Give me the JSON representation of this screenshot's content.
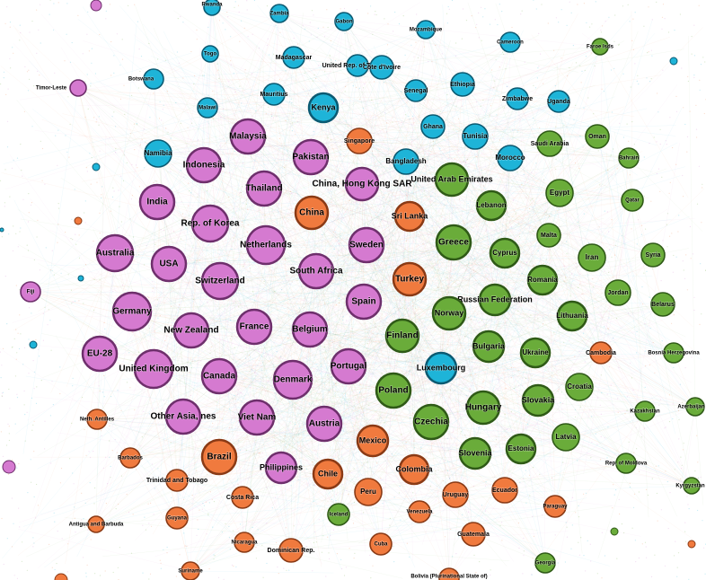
{
  "palette": {
    "purple": {
      "fill": "#d57ad0",
      "stroke": "#6e2f6c"
    },
    "green": {
      "fill": "#6aac3a",
      "stroke": "#2f5a17"
    },
    "orange": {
      "fill": "#f07a3e",
      "stroke": "#8a3a15"
    },
    "cyan": {
      "fill": "#1eb4d8",
      "stroke": "#0b5a72"
    },
    "edge_colors": [
      "#d57ad0",
      "#6aac3a",
      "#f07a3e",
      "#1eb4d8"
    ]
  },
  "nodes": [
    {
      "id": "rwanda",
      "label": "Rwanda",
      "group": "cyan"
    },
    {
      "id": "zambia",
      "label": "Zambia",
      "group": "cyan"
    },
    {
      "id": "gabon",
      "label": "Gabon",
      "group": "cyan"
    },
    {
      "id": "mozambique",
      "label": "Mozambique",
      "group": "cyan"
    },
    {
      "id": "cameroon",
      "label": "Cameroon",
      "group": "cyan"
    },
    {
      "id": "togo",
      "label": "Togo",
      "group": "cyan"
    },
    {
      "id": "madagascar",
      "label": "Madagascar",
      "group": "cyan"
    },
    {
      "id": "tanzania",
      "label": "United Rep. of Tanzania",
      "group": "cyan"
    },
    {
      "id": "cote",
      "label": "Côte d'Ivoire",
      "group": "cyan"
    },
    {
      "id": "botswana",
      "label": "Botswana",
      "group": "cyan"
    },
    {
      "id": "ethiopia",
      "label": "Ethiopia",
      "group": "cyan"
    },
    {
      "id": "mauritius",
      "label": "Mauritius",
      "group": "cyan"
    },
    {
      "id": "senegal",
      "label": "Senegal",
      "group": "cyan"
    },
    {
      "id": "zimbabwe",
      "label": "Zimbabwe",
      "group": "cyan"
    },
    {
      "id": "uganda",
      "label": "Uganda",
      "group": "cyan"
    },
    {
      "id": "malawi",
      "label": "Malawi",
      "group": "cyan"
    },
    {
      "id": "kenya",
      "label": "Kenya",
      "group": "cyan"
    },
    {
      "id": "ghana",
      "label": "Ghana",
      "group": "cyan"
    },
    {
      "id": "tunisia",
      "label": "Tunisia",
      "group": "cyan"
    },
    {
      "id": "namibia",
      "label": "Namibia",
      "group": "cyan"
    },
    {
      "id": "bangladesh",
      "label": "Bangladesh",
      "group": "cyan"
    },
    {
      "id": "morocco",
      "label": "Morocco",
      "group": "cyan"
    },
    {
      "id": "luxembourg",
      "label": "Luxembourg",
      "group": "cyan"
    },
    {
      "id": "timor",
      "label": "Timor-Leste",
      "group": "purple"
    },
    {
      "id": "malaysia",
      "label": "Malaysia",
      "group": "purple"
    },
    {
      "id": "pakistan",
      "label": "Pakistan",
      "group": "purple"
    },
    {
      "id": "indonesia",
      "label": "Indonesia",
      "group": "purple"
    },
    {
      "id": "thailand",
      "label": "Thailand",
      "group": "purple"
    },
    {
      "id": "hongkong",
      "label": "China, Hong Kong SAR",
      "group": "purple"
    },
    {
      "id": "india",
      "label": "India",
      "group": "purple"
    },
    {
      "id": "korea",
      "label": "Rep. of Korea",
      "group": "purple"
    },
    {
      "id": "netherlands",
      "label": "Netherlands",
      "group": "purple"
    },
    {
      "id": "sweden",
      "label": "Sweden",
      "group": "purple"
    },
    {
      "id": "australia",
      "label": "Australia",
      "group": "purple"
    },
    {
      "id": "usa",
      "label": "USA",
      "group": "purple"
    },
    {
      "id": "switzerland",
      "label": "Switzerland",
      "group": "purple"
    },
    {
      "id": "southafrica",
      "label": "South Africa",
      "group": "purple"
    },
    {
      "id": "fiji",
      "label": "Fiji",
      "group": "purple"
    },
    {
      "id": "spain",
      "label": "Spain",
      "group": "purple"
    },
    {
      "id": "germany",
      "label": "Germany",
      "group": "purple"
    },
    {
      "id": "newzealand",
      "label": "New Zealand",
      "group": "purple"
    },
    {
      "id": "france",
      "label": "France",
      "group": "purple"
    },
    {
      "id": "belgium",
      "label": "Belgium",
      "group": "purple"
    },
    {
      "id": "eu28",
      "label": "EU-28",
      "group": "purple"
    },
    {
      "id": "uk",
      "label": "United Kingdom",
      "group": "purple"
    },
    {
      "id": "portugal",
      "label": "Portugal",
      "group": "purple"
    },
    {
      "id": "canada",
      "label": "Canada",
      "group": "purple"
    },
    {
      "id": "denmark",
      "label": "Denmark",
      "group": "purple"
    },
    {
      "id": "otherasia",
      "label": "Other Asia, nes",
      "group": "purple"
    },
    {
      "id": "vietnam",
      "label": "Viet Nam",
      "group": "purple"
    },
    {
      "id": "austria",
      "label": "Austria",
      "group": "purple"
    },
    {
      "id": "philippines",
      "label": "Philippines",
      "group": "purple"
    },
    {
      "id": "singapore",
      "label": "Singapore",
      "group": "orange"
    },
    {
      "id": "china",
      "label": "China",
      "group": "orange"
    },
    {
      "id": "srilanka",
      "label": "Sri Lanka",
      "group": "orange"
    },
    {
      "id": "turkey",
      "label": "Turkey",
      "group": "orange"
    },
    {
      "id": "cambodia",
      "label": "Cambodia",
      "group": "orange"
    },
    {
      "id": "nethantilles",
      "label": "Neth. Antilles",
      "group": "orange"
    },
    {
      "id": "mexico",
      "label": "Mexico",
      "group": "orange"
    },
    {
      "id": "brazil",
      "label": "Brazil",
      "group": "orange"
    },
    {
      "id": "barbados",
      "label": "Barbados",
      "group": "orange"
    },
    {
      "id": "chile",
      "label": "Chile",
      "group": "orange"
    },
    {
      "id": "colombia",
      "label": "Colombia",
      "group": "orange"
    },
    {
      "id": "trinidad",
      "label": "Trinidad and Tobago",
      "group": "orange"
    },
    {
      "id": "peru",
      "label": "Peru",
      "group": "orange"
    },
    {
      "id": "uruguay",
      "label": "Uruguay",
      "group": "orange"
    },
    {
      "id": "ecuador",
      "label": "Ecuador",
      "group": "orange"
    },
    {
      "id": "costarica",
      "label": "Costa Rica",
      "group": "orange"
    },
    {
      "id": "venezuela",
      "label": "Venezuela",
      "group": "orange"
    },
    {
      "id": "paraguay",
      "label": "Paraguay",
      "group": "orange"
    },
    {
      "id": "guyana",
      "label": "Guyana",
      "group": "orange"
    },
    {
      "id": "antigua",
      "label": "Antigua and Barbuda",
      "group": "orange"
    },
    {
      "id": "guatemala",
      "label": "Guatemala",
      "group": "orange"
    },
    {
      "id": "nicaragua",
      "label": "Nicaragua",
      "group": "orange"
    },
    {
      "id": "dominican",
      "label": "Dominican Rep.",
      "group": "orange"
    },
    {
      "id": "cuba",
      "label": "Cuba",
      "group": "orange"
    },
    {
      "id": "suriname",
      "label": "Suriname",
      "group": "orange"
    },
    {
      "id": "bolivia",
      "label": "Bolivia (Plurinational State of)",
      "group": "orange"
    },
    {
      "id": "faroe",
      "label": "Faroe Isds",
      "group": "green"
    },
    {
      "id": "oman",
      "label": "Oman",
      "group": "green"
    },
    {
      "id": "saudi",
      "label": "Saudi Arabia",
      "group": "green"
    },
    {
      "id": "bahrain",
      "label": "Bahrain",
      "group": "green"
    },
    {
      "id": "uae",
      "label": "United Arab Emirates",
      "group": "green"
    },
    {
      "id": "egypt",
      "label": "Egypt",
      "group": "green"
    },
    {
      "id": "qatar",
      "label": "Qatar",
      "group": "green"
    },
    {
      "id": "lebanon",
      "label": "Lebanon",
      "group": "green"
    },
    {
      "id": "malta",
      "label": "Malta",
      "group": "green"
    },
    {
      "id": "greece",
      "label": "Greece",
      "group": "green"
    },
    {
      "id": "cyprus",
      "label": "Cyprus",
      "group": "green"
    },
    {
      "id": "iran",
      "label": "Iran",
      "group": "green"
    },
    {
      "id": "syria",
      "label": "Syria",
      "group": "green"
    },
    {
      "id": "romania",
      "label": "Romania",
      "group": "green"
    },
    {
      "id": "jordan",
      "label": "Jordan",
      "group": "green"
    },
    {
      "id": "russia",
      "label": "Russian Federation",
      "group": "green"
    },
    {
      "id": "norway",
      "label": "Norway",
      "group": "green"
    },
    {
      "id": "belarus",
      "label": "Belarus",
      "group": "green"
    },
    {
      "id": "lithuania",
      "label": "Lithuania",
      "group": "green"
    },
    {
      "id": "finland",
      "label": "Finland",
      "group": "green"
    },
    {
      "id": "bulgaria",
      "label": "Bulgaria",
      "group": "green"
    },
    {
      "id": "ukraine",
      "label": "Ukraine",
      "group": "green"
    },
    {
      "id": "bosnia",
      "label": "Bosnia Herzegovina",
      "group": "green"
    },
    {
      "id": "croatia",
      "label": "Croatia",
      "group": "green"
    },
    {
      "id": "poland",
      "label": "Poland",
      "group": "green"
    },
    {
      "id": "hungary",
      "label": "Hungary",
      "group": "green"
    },
    {
      "id": "slovakia",
      "label": "Slovakia",
      "group": "green"
    },
    {
      "id": "kazakhstan",
      "label": "Kazakhstan",
      "group": "green"
    },
    {
      "id": "azerbaijan",
      "label": "Azerbaijan",
      "group": "green"
    },
    {
      "id": "czechia",
      "label": "Czechia",
      "group": "green"
    },
    {
      "id": "latvia",
      "label": "Latvia",
      "group": "green"
    },
    {
      "id": "estonia",
      "label": "Estonia",
      "group": "green"
    },
    {
      "id": "slovenia",
      "label": "Slovenia",
      "group": "green"
    },
    {
      "id": "moldova",
      "label": "Rep. of Moldova",
      "group": "green"
    },
    {
      "id": "kyrgyzstan",
      "label": "Kyrgyzstan",
      "group": "green"
    },
    {
      "id": "iceland",
      "label": "Iceland",
      "group": "green"
    },
    {
      "id": "georgia",
      "label": "Georgia",
      "group": "green"
    }
  ]
}
